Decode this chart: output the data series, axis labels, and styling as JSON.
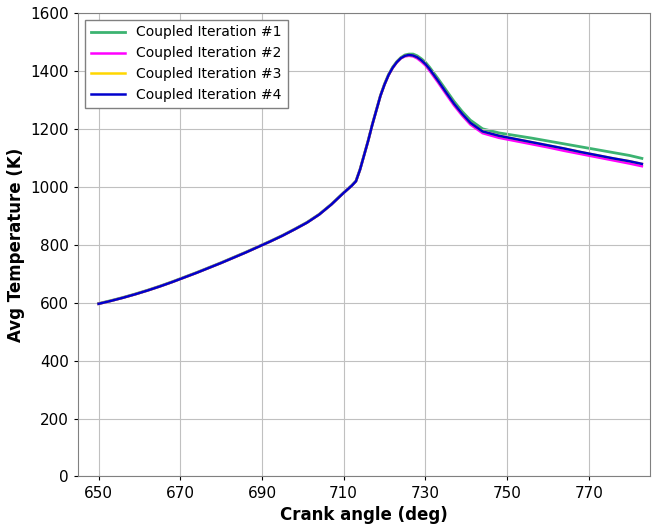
{
  "title": "",
  "xlabel": "Crank angle (deg)",
  "ylabel": "Avg Temperature (K)",
  "xlim": [
    645,
    785
  ],
  "ylim": [
    0,
    1600
  ],
  "xticks": [
    650,
    670,
    690,
    710,
    730,
    750,
    770
  ],
  "yticks": [
    0,
    200,
    400,
    600,
    800,
    1000,
    1200,
    1400,
    1600
  ],
  "legend_labels": [
    "Coupled Iteration #1",
    "Coupled Iteration #2",
    "Coupled Iteration #3",
    "Coupled Iteration #4"
  ],
  "colors": [
    "#3CB371",
    "#FF00FF",
    "#FFD700",
    "#0000CD"
  ],
  "linewidths": [
    2.0,
    1.8,
    1.8,
    1.8
  ],
  "grid_color": "#C0C0C0",
  "background_color": "#FFFFFF",
  "curve_data": {
    "x_common": [
      650,
      653,
      656,
      659,
      662,
      665,
      668,
      671,
      674,
      677,
      680,
      683,
      686,
      689,
      692,
      695,
      698,
      701,
      704,
      707,
      710,
      712,
      713,
      714,
      715,
      716,
      717,
      718,
      719,
      720,
      721,
      722,
      723,
      724,
      725,
      726,
      727,
      728,
      729,
      730,
      731,
      733,
      735,
      737,
      739,
      741,
      744,
      748,
      752,
      756,
      760,
      764,
      768,
      772,
      776,
      780,
      783
    ],
    "y1": [
      597,
      607,
      618,
      630,
      643,
      657,
      672,
      688,
      704,
      721,
      738,
      756,
      774,
      793,
      812,
      832,
      854,
      877,
      905,
      940,
      980,
      1005,
      1020,
      1060,
      1110,
      1160,
      1215,
      1265,
      1315,
      1355,
      1388,
      1413,
      1432,
      1446,
      1455,
      1458,
      1458,
      1452,
      1442,
      1430,
      1413,
      1375,
      1335,
      1295,
      1260,
      1230,
      1200,
      1186,
      1177,
      1168,
      1158,
      1148,
      1138,
      1128,
      1118,
      1108,
      1098
    ],
    "y2": [
      596,
      606,
      617,
      629,
      642,
      656,
      671,
      687,
      703,
      720,
      737,
      755,
      773,
      792,
      811,
      831,
      853,
      876,
      904,
      939,
      979,
      1004,
      1019,
      1059,
      1109,
      1159,
      1214,
      1264,
      1314,
      1353,
      1385,
      1410,
      1429,
      1443,
      1450,
      1452,
      1450,
      1443,
      1432,
      1419,
      1401,
      1362,
      1321,
      1281,
      1246,
      1215,
      1185,
      1169,
      1158,
      1147,
      1136,
      1124,
      1113,
      1102,
      1091,
      1080,
      1071
    ],
    "y3": [
      596,
      606,
      617,
      629,
      642,
      656,
      671,
      687,
      703,
      720,
      737,
      755,
      773,
      792,
      811,
      831,
      853,
      876,
      904,
      939,
      979,
      1004,
      1019,
      1059,
      1109,
      1159,
      1214,
      1264,
      1314,
      1353,
      1386,
      1411,
      1430,
      1444,
      1452,
      1455,
      1453,
      1447,
      1437,
      1424,
      1407,
      1368,
      1327,
      1287,
      1252,
      1221,
      1191,
      1176,
      1165,
      1154,
      1143,
      1132,
      1120,
      1109,
      1098,
      1088,
      1079
    ],
    "y4": [
      596,
      606,
      617,
      629,
      642,
      656,
      671,
      687,
      703,
      720,
      737,
      755,
      773,
      792,
      811,
      831,
      853,
      876,
      904,
      939,
      979,
      1004,
      1019,
      1059,
      1109,
      1159,
      1214,
      1264,
      1314,
      1353,
      1386,
      1411,
      1430,
      1444,
      1452,
      1455,
      1453,
      1447,
      1437,
      1424,
      1407,
      1368,
      1327,
      1287,
      1252,
      1221,
      1191,
      1176,
      1165,
      1154,
      1143,
      1132,
      1120,
      1109,
      1098,
      1088,
      1079
    ]
  }
}
